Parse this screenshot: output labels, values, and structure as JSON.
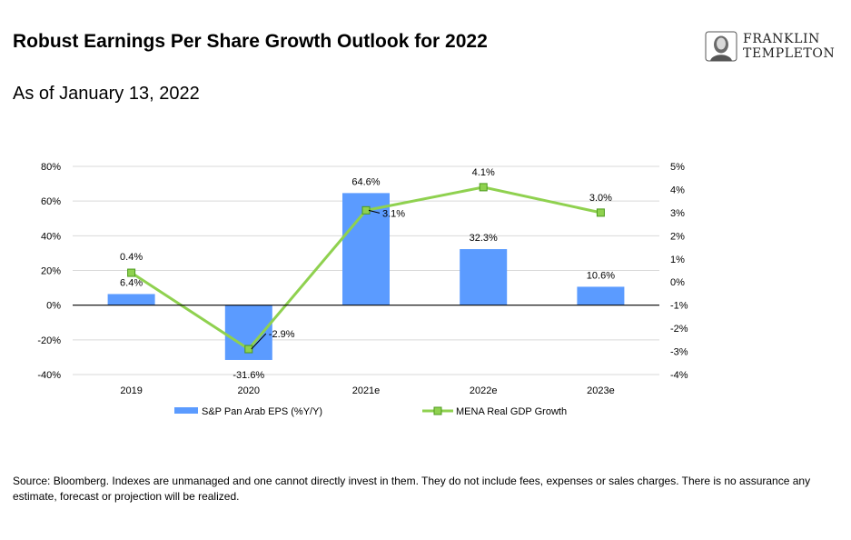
{
  "header": {
    "title": "Robust Earnings Per Share Growth Outlook for 2022",
    "subtitle": "As of January 13, 2022",
    "logo_line1": "FRANKLIN",
    "logo_line2": "TEMPLETON"
  },
  "footer": {
    "source": "Source: Bloomberg. Indexes are unmanaged and one cannot directly invest in them. They do not include fees, expenses or sales charges. There is no assurance any estimate, forecast or projection will be realized."
  },
  "colors": {
    "bar": "#5b9bff",
    "line": "#8fd14f",
    "marker": "#8fd14f",
    "marker_border": "#4c9a1c"
  },
  "chart_data": {
    "type": "bar",
    "categories": [
      "2019",
      "2020",
      "2021e",
      "2022e",
      "2023e"
    ],
    "series": [
      {
        "name": "S&P Pan Arab EPS (%Y/Y)",
        "chart_type": "bar",
        "axis": "left",
        "values": [
          6.4,
          -31.6,
          64.6,
          32.3,
          10.6
        ],
        "labels": [
          "6.4%",
          "-31.6%",
          "64.6%",
          "32.3%",
          "10.6%"
        ]
      },
      {
        "name": "MENA Real GDP Growth",
        "chart_type": "line",
        "axis": "right",
        "values": [
          0.4,
          -2.9,
          3.1,
          4.1,
          3.0
        ],
        "labels": [
          "0.4%",
          "-2.9%",
          "3.1%",
          "4.1%",
          "3.0%"
        ]
      }
    ],
    "y_left": {
      "ylim": [
        -40,
        80
      ],
      "ticks": [
        "80%",
        "60%",
        "40%",
        "20%",
        "0%",
        "-20%",
        "-40%"
      ]
    },
    "y_right": {
      "ylim": [
        -4,
        5
      ],
      "ticks": [
        "5%",
        "4%",
        "3%",
        "2%",
        "1%",
        "0%",
        "-1%",
        "-2%",
        "-3%",
        "-4%"
      ]
    },
    "grid": true,
    "legend": "bottom"
  }
}
